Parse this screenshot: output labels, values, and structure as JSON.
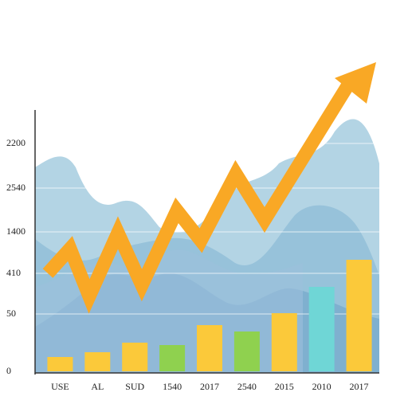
{
  "chart_data": {
    "type": "bar",
    "categories": [
      "USE",
      "AL",
      "SUD",
      "1540",
      "2017",
      "2540",
      "2015",
      "2010",
      "2017"
    ],
    "values": [
      18,
      24,
      36,
      33,
      58,
      50,
      73,
      106,
      140
    ],
    "colors": [
      "#fbc93a",
      "#fbc93a",
      "#fbc93a",
      "#8fd14f",
      "#fbc93a",
      "#8fd14f",
      "#fbc93a",
      "#6fd6d6",
      "#fbc93a"
    ],
    "ylim": [
      0,
      326
    ],
    "yticks": [
      0,
      {
        "value": 72,
        "label": "50"
      },
      {
        "value": 123,
        "label": "410"
      },
      {
        "value": 175,
        "label": "1400"
      },
      {
        "value": 230,
        "label": "2540"
      },
      {
        "value": 286,
        "label": "2200"
      }
    ],
    "grid": true
  }
}
